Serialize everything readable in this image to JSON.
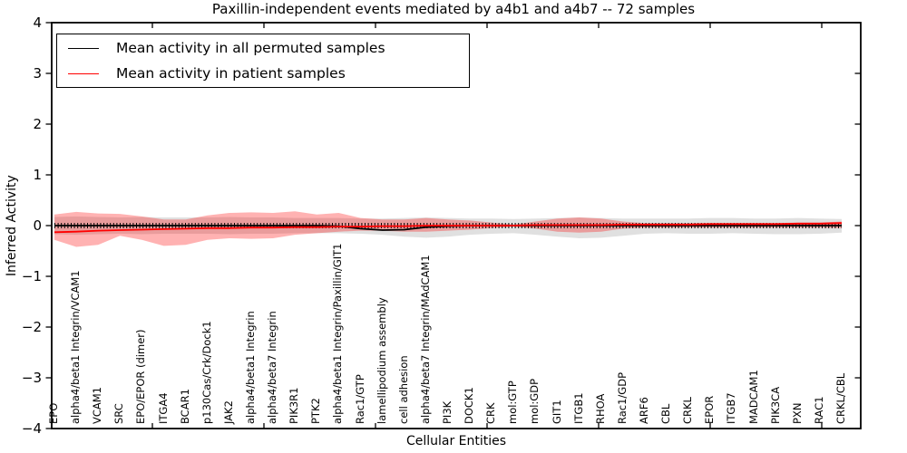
{
  "chart_data": {
    "type": "line",
    "title": "Paxillin-independent events mediated by a4b1 and a4b7 -- 72 samples",
    "xlabel": "Cellular Entities",
    "ylabel": "Inferred Activity",
    "ylim": [
      -4,
      4
    ],
    "yticks": [
      4,
      3,
      2,
      1,
      0,
      -1,
      -2,
      -3,
      -4
    ],
    "grid": false,
    "legend_position": "upper left",
    "zero_line": {
      "value": 0,
      "style": "dotted"
    },
    "categories": [
      "EPO",
      "alpha4/beta1 Integrin/VCAM1",
      "VCAM1",
      "SRC",
      "EPO/EPOR (dimer)",
      "ITGA4",
      "BCAR1",
      "p130Cas/Crk/Dock1",
      "JAK2",
      "alpha4/beta1 Integrin",
      "alpha4/beta7 Integrin",
      "PIK3R1",
      "PTK2",
      "alpha4/beta1 Integrin/Paxillin/GIT1",
      "Rac1/GTP",
      "lamellipodium assembly",
      "cell adhesion",
      "alpha4/beta7 Integrin/MAdCAM1",
      "PI3K",
      "DOCK1",
      "CRK",
      "mol:GTP",
      "mol:GDP",
      "GIT1",
      "ITGB1",
      "RHOA",
      "Rac1/GDP",
      "ARF6",
      "CBL",
      "CRKL",
      "EPOR",
      "ITGB7",
      "MADCAM1",
      "PIK3CA",
      "PXN",
      "RAC1",
      "CRKL/CBL"
    ],
    "series": [
      {
        "name": "Mean activity in all permuted samples",
        "color": "#000000",
        "values": [
          0,
          0,
          0,
          0,
          0,
          0,
          0,
          0,
          0,
          0,
          0,
          0,
          0,
          -0.01,
          -0.06,
          -0.09,
          -0.08,
          -0.03,
          -0.01,
          0,
          0,
          0,
          0,
          0,
          0,
          0,
          0,
          0,
          0,
          0,
          0,
          0,
          0,
          0,
          0,
          0,
          0
        ]
      },
      {
        "name": "Mean activity in patient samples",
        "color": "#ff0000",
        "values": [
          -0.13,
          -0.12,
          -0.1,
          -0.09,
          -0.08,
          -0.07,
          -0.06,
          -0.05,
          -0.05,
          -0.04,
          -0.04,
          -0.03,
          -0.03,
          -0.02,
          -0.02,
          -0.01,
          -0.01,
          0,
          0,
          0,
          0,
          0,
          0.01,
          0.01,
          0.01,
          0.01,
          0.02,
          0.02,
          0.02,
          0.02,
          0.03,
          0.03,
          0.03,
          0.03,
          0.04,
          0.04,
          0.05
        ]
      }
    ],
    "bands": [
      {
        "name": "permuted samples spread",
        "fill": "rgba(0,0,0,0.12)",
        "upper": [
          0.17,
          0.18,
          0.17,
          0.16,
          0.17,
          0.16,
          0.16,
          0.16,
          0.17,
          0.16,
          0.16,
          0.15,
          0.15,
          0.15,
          0.14,
          0.14,
          0.15,
          0.16,
          0.15,
          0.14,
          0.14,
          0.13,
          0.14,
          0.15,
          0.16,
          0.15,
          0.14,
          0.14,
          0.14,
          0.14,
          0.15,
          0.15,
          0.14,
          0.14,
          0.15,
          0.14,
          0.13
        ],
        "lower": [
          -0.17,
          -0.18,
          -0.17,
          -0.16,
          -0.17,
          -0.16,
          -0.16,
          -0.16,
          -0.17,
          -0.16,
          -0.16,
          -0.15,
          -0.15,
          -0.15,
          -0.16,
          -0.18,
          -0.22,
          -0.24,
          -0.22,
          -0.18,
          -0.16,
          -0.15,
          -0.18,
          -0.22,
          -0.25,
          -0.24,
          -0.2,
          -0.16,
          -0.15,
          -0.16,
          -0.16,
          -0.15,
          -0.16,
          -0.17,
          -0.17,
          -0.16,
          -0.14
        ]
      },
      {
        "name": "patient samples spread",
        "fill": "rgba(255,0,0,0.30)",
        "upper": [
          0.22,
          0.27,
          0.24,
          0.23,
          0.18,
          0.12,
          0.12,
          0.2,
          0.25,
          0.26,
          0.25,
          0.28,
          0.22,
          0.25,
          0.15,
          0.12,
          0.12,
          0.15,
          0.12,
          0.1,
          0.06,
          0.02,
          0.08,
          0.14,
          0.16,
          0.14,
          0.08,
          0.05,
          0.05,
          0.05,
          0.05,
          0.05,
          0.05,
          0.05,
          0.06,
          0.06,
          0.08
        ],
        "lower": [
          -0.28,
          -0.42,
          -0.38,
          -0.2,
          -0.28,
          -0.4,
          -0.38,
          -0.28,
          -0.25,
          -0.26,
          -0.25,
          -0.18,
          -0.15,
          -0.12,
          -0.1,
          -0.1,
          -0.12,
          -0.12,
          -0.1,
          -0.08,
          -0.05,
          -0.02,
          -0.06,
          -0.12,
          -0.14,
          -0.12,
          -0.06,
          -0.04,
          -0.04,
          -0.04,
          -0.04,
          -0.04,
          -0.04,
          -0.04,
          -0.04,
          -0.04,
          -0.05
        ]
      }
    ]
  },
  "legend": {
    "items": [
      {
        "label": "Mean activity in all permuted samples",
        "color": "#000000"
      },
      {
        "label": "Mean activity in patient samples",
        "color": "#ff0000"
      }
    ]
  }
}
